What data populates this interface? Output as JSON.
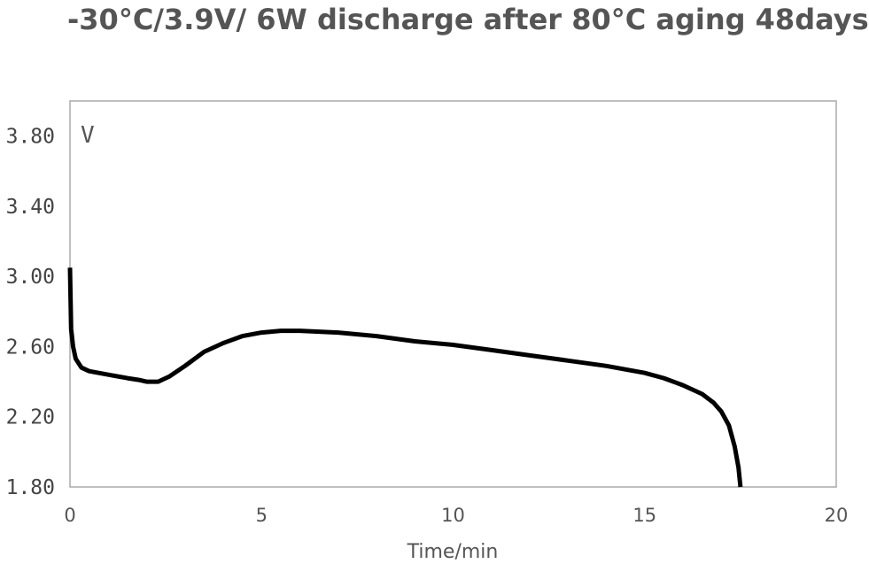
{
  "chart_data": {
    "type": "line",
    "title": "-30°C/3.9V/ 6W discharge after 80°C aging 48days",
    "xlabel": "Time/min",
    "ylabel": "V",
    "xlim": [
      0,
      20
    ],
    "ylim": [
      1.8,
      4.0
    ],
    "xticks": [
      "0",
      "5",
      "10",
      "15",
      "20"
    ],
    "yticks": [
      "1.80",
      "2.20",
      "2.60",
      "3.00",
      "3.40",
      "3.80"
    ],
    "grid": false,
    "line_color": "#000000",
    "series": [
      {
        "x": [
          0.0,
          0.03,
          0.08,
          0.15,
          0.3,
          0.5,
          1.0,
          1.5,
          1.8,
          2.0,
          2.3,
          2.6,
          3.0,
          3.5,
          4.0,
          4.5,
          5.0,
          5.5,
          6.0,
          7.0,
          8.0,
          9.0,
          10.0,
          11.0,
          12.0,
          13.0,
          14.0,
          15.0,
          15.5,
          16.0,
          16.5,
          16.8,
          17.0,
          17.2,
          17.35,
          17.45,
          17.5
        ],
        "y": [
          3.05,
          2.7,
          2.6,
          2.53,
          2.48,
          2.46,
          2.44,
          2.42,
          2.41,
          2.4,
          2.4,
          2.43,
          2.49,
          2.57,
          2.62,
          2.66,
          2.68,
          2.69,
          2.69,
          2.68,
          2.66,
          2.63,
          2.61,
          2.58,
          2.55,
          2.52,
          2.49,
          2.45,
          2.42,
          2.38,
          2.33,
          2.28,
          2.23,
          2.15,
          2.03,
          1.91,
          1.8
        ]
      }
    ]
  }
}
